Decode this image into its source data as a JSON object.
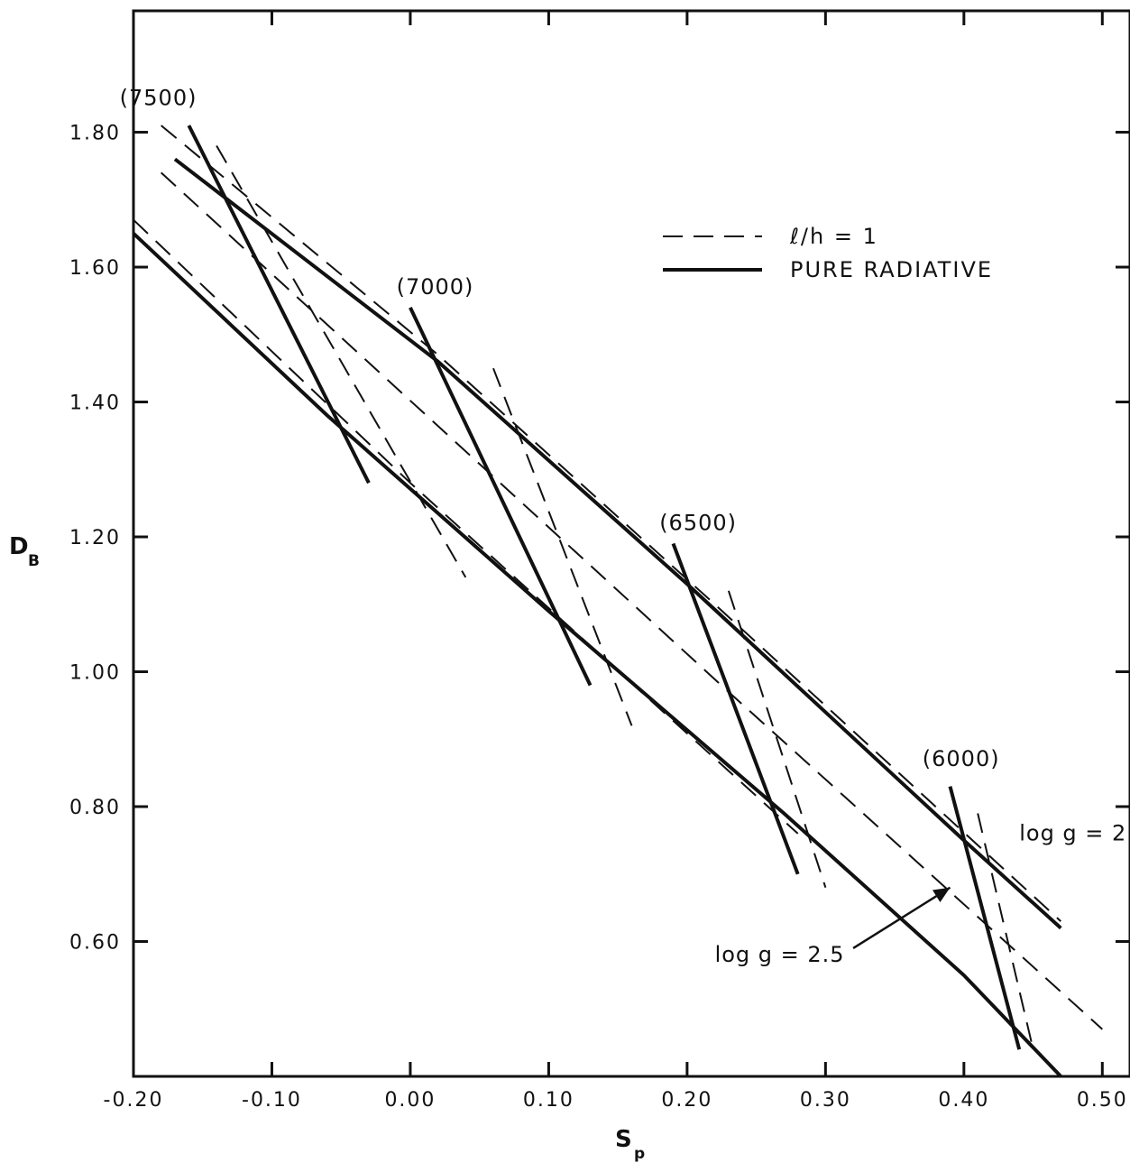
{
  "chart_data": {
    "type": "line",
    "xlabel": "S",
    "xlabel_sub": "p",
    "ylabel": "D",
    "ylabel_sub": "B",
    "xlim": [
      -0.2,
      0.52
    ],
    "ylim": [
      0.4,
      1.98
    ],
    "x_ticks": [
      "-0.20",
      "-0.10",
      "0.00",
      "0.10",
      "0.20",
      "0.30",
      "0.40",
      "0.50"
    ],
    "x_tick_values": [
      -0.2,
      -0.1,
      0.0,
      0.1,
      0.2,
      0.3,
      0.4,
      0.5
    ],
    "y_ticks": [
      "0.60",
      "0.80",
      "1.00",
      "1.20",
      "1.40",
      "1.60",
      "1.80"
    ],
    "y_tick_values": [
      0.6,
      0.8,
      1.0,
      1.2,
      1.4,
      1.6,
      1.8
    ],
    "grid": false,
    "legend": {
      "position": "top-right",
      "entries": [
        {
          "label": "ℓ/h = 1",
          "style": "dashed"
        },
        {
          "label": "PURE RADIATIVE",
          "style": "solid"
        }
      ]
    },
    "series": [
      {
        "style": "solid",
        "points": [
          [
            -0.17,
            1.76
          ],
          [
            0.02,
            1.46
          ],
          [
            0.2,
            1.13
          ],
          [
            0.4,
            0.75
          ],
          [
            0.47,
            0.62
          ]
        ]
      },
      {
        "style": "solid",
        "points": [
          [
            -0.2,
            1.65
          ],
          [
            -0.06,
            1.38
          ],
          [
            0.1,
            1.09
          ],
          [
            0.27,
            0.79
          ],
          [
            0.4,
            0.55
          ],
          [
            0.47,
            0.4
          ]
        ]
      },
      {
        "style": "dashed",
        "points": [
          [
            -0.18,
            1.81
          ],
          [
            0.02,
            1.47
          ],
          [
            0.22,
            1.1
          ],
          [
            0.47,
            0.63
          ]
        ]
      },
      {
        "style": "dashed",
        "points": [
          [
            -0.18,
            1.74
          ],
          [
            0.23,
            0.97
          ],
          [
            0.5,
            0.47
          ]
        ]
      },
      {
        "style": "dashed",
        "points": [
          [
            -0.2,
            1.67
          ],
          [
            0.0,
            1.28
          ],
          [
            0.28,
            0.76
          ]
        ]
      },
      {
        "style": "solid",
        "points": [
          [
            -0.16,
            1.81
          ],
          [
            -0.03,
            1.28
          ]
        ]
      },
      {
        "style": "dashed",
        "points": [
          [
            -0.14,
            1.78
          ],
          [
            0.04,
            1.14
          ]
        ]
      },
      {
        "style": "solid",
        "points": [
          [
            0.0,
            1.54
          ],
          [
            0.13,
            0.98
          ]
        ]
      },
      {
        "style": "dashed",
        "points": [
          [
            0.06,
            1.45
          ],
          [
            0.16,
            0.92
          ]
        ]
      },
      {
        "style": "solid",
        "points": [
          [
            0.19,
            1.19
          ],
          [
            0.28,
            0.7
          ]
        ]
      },
      {
        "style": "dashed",
        "points": [
          [
            0.23,
            1.12
          ],
          [
            0.3,
            0.68
          ]
        ]
      },
      {
        "style": "solid",
        "points": [
          [
            0.39,
            0.83
          ],
          [
            0.44,
            0.44
          ]
        ]
      },
      {
        "style": "dashed",
        "points": [
          [
            0.41,
            0.79
          ],
          [
            0.45,
            0.44
          ]
        ]
      }
    ],
    "annotations": [
      {
        "text": "(7500)",
        "x": -0.21,
        "y": 1.84
      },
      {
        "text": "(7000)",
        "x": -0.01,
        "y": 1.56
      },
      {
        "text": "(6500)",
        "x": 0.18,
        "y": 1.21
      },
      {
        "text": "(6000)",
        "x": 0.37,
        "y": 0.86
      },
      {
        "text": "log g = 2",
        "x": 0.44,
        "y": 0.75
      },
      {
        "text": "log g = 2.5",
        "x": 0.22,
        "y": 0.57
      }
    ],
    "arrow": {
      "from": [
        0.32,
        0.59
      ],
      "to": [
        0.39,
        0.68
      ]
    }
  }
}
